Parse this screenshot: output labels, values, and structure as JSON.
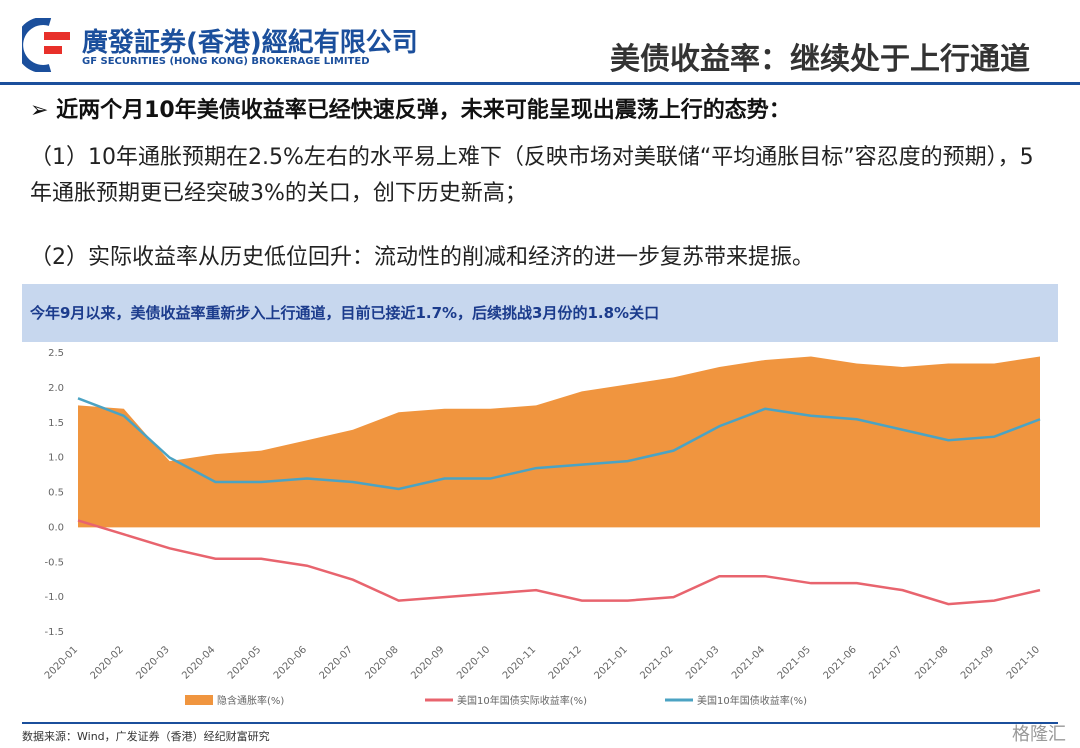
{
  "header": {
    "logo_cn": "廣發証券(香港)經紀有限公司",
    "logo_en": "GF SECURITIES (HONG KONG) BROKERAGE LIMITED",
    "title": "美债收益率：继续处于上行通道"
  },
  "bullet": "近两个月10年美债收益率已经快速反弹，未来可能呈现出震荡上行的态势：",
  "points": [
    "（1）10年通胀预期在2.5%左右的水平易上难下（反映市场对美联储“平均通胀目标”容忍度的预期），5年通胀预期更已经突破3%的关口，创下历史新高；",
    "（2）实际收益率从历史低位回升：流动性的削减和经济的进一步复苏带来提振。"
  ],
  "banner": "今年9月以来，美债收益率重新步入上行通道，目前已接近1.7%，后续挑战3月份的1.8%关口",
  "chart_data": {
    "type": "line",
    "categories": [
      "2020-01",
      "2020-02",
      "2020-03",
      "2020-04",
      "2020-05",
      "2020-06",
      "2020-07",
      "2020-08",
      "2020-09",
      "2020-10",
      "2020-11",
      "2020-12",
      "2021-01",
      "2021-02",
      "2021-03",
      "2021-04",
      "2021-05",
      "2021-06",
      "2021-07",
      "2021-08",
      "2021-09",
      "2021-10"
    ],
    "series": [
      {
        "name": "隐含通胀率(%)",
        "color": "#f0953f",
        "kind": "area",
        "values": [
          1.75,
          1.7,
          0.95,
          1.05,
          1.1,
          1.25,
          1.4,
          1.65,
          1.7,
          1.7,
          1.75,
          1.95,
          2.05,
          2.15,
          2.3,
          2.4,
          2.45,
          2.35,
          2.3,
          2.35,
          2.35,
          2.45
        ]
      },
      {
        "name": "美国10年国债实际收益率(%)",
        "color": "#e8646e",
        "kind": "line",
        "values": [
          0.1,
          -0.1,
          -0.3,
          -0.45,
          -0.45,
          -0.55,
          -0.75,
          -1.05,
          -1.0,
          -0.95,
          -0.9,
          -1.05,
          -1.05,
          -1.0,
          -0.7,
          -0.7,
          -0.8,
          -0.8,
          -0.9,
          -1.1,
          -1.05,
          -0.9
        ]
      },
      {
        "name": "美国10年国债收益率(%)",
        "color": "#4ba3c3",
        "kind": "line",
        "values": [
          1.85,
          1.6,
          1.0,
          0.65,
          0.65,
          0.7,
          0.65,
          0.55,
          0.7,
          0.7,
          0.85,
          0.9,
          0.95,
          1.1,
          1.45,
          1.7,
          1.6,
          1.55,
          1.4,
          1.25,
          1.3,
          1.55
        ]
      }
    ],
    "ylim": [
      -1.5,
      2.5
    ],
    "yticks": [
      {
        "value": -1.5,
        "label": "-1.5"
      },
      {
        "value": -1,
        "label": "-1.0"
      },
      {
        "value": -0.5,
        "label": "-0.5"
      },
      {
        "value": 0,
        "label": "0.0"
      },
      {
        "value": 0.5,
        "label": "0.5"
      },
      {
        "value": 1,
        "label": "1.0"
      },
      {
        "value": 1.5,
        "label": "1.5"
      },
      {
        "value": 2,
        "label": "2.0"
      },
      {
        "value": 2.5,
        "label": "2.5"
      }
    ]
  },
  "source": "数据来源：Wind，广发证券（香港）经纪财富研究",
  "watermark": "格隆汇"
}
